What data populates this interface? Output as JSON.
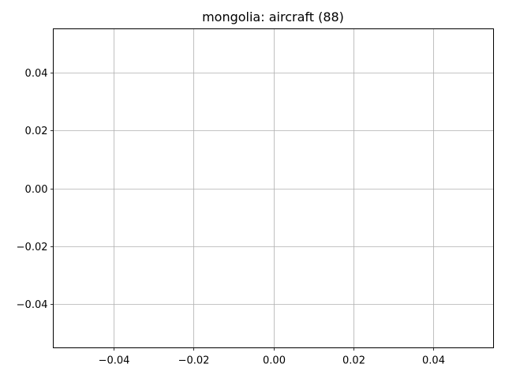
{
  "chart_data": {
    "type": "line",
    "title": "mongolia: aircraft (88)",
    "xlabel": "",
    "ylabel": "",
    "series": [],
    "xlim": [
      -0.055,
      0.055
    ],
    "ylim": [
      -0.055,
      0.055
    ],
    "xticks": [
      -0.04,
      -0.02,
      0.0,
      0.02,
      0.04
    ],
    "yticks": [
      -0.04,
      -0.02,
      0.0,
      0.02,
      0.04
    ],
    "xtick_labels": [
      "−0.04",
      "−0.02",
      "0.00",
      "0.02",
      "0.04"
    ],
    "ytick_labels": [
      "−0.04",
      "−0.02",
      "0.00",
      "0.02",
      "0.04"
    ],
    "grid": true,
    "colors": {
      "grid": "#b0b0b0",
      "axes": "#000000",
      "background": "#ffffff"
    }
  }
}
